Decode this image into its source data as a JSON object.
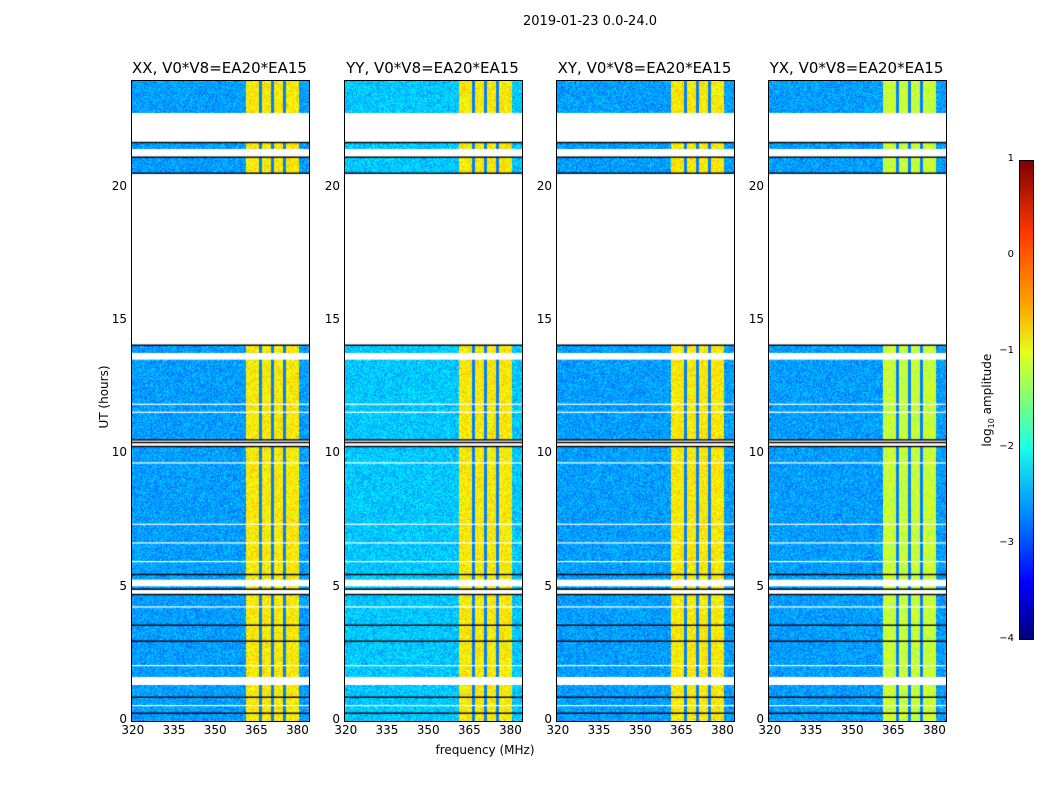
{
  "chart_data": {
    "type": "heatmap",
    "title": "2019-01-23 0.0-24.0",
    "xlabel": "frequency (MHz)",
    "ylabel": "UT (hours)",
    "xlim": [
      319.5,
      384
    ],
    "ylim": [
      0,
      24
    ],
    "xticks": [
      "320",
      "335",
      "350",
      "365",
      "380"
    ],
    "yticks": [
      "0",
      "5",
      "10",
      "15",
      "20"
    ],
    "panels": [
      {
        "title": "XX, V0*V8=EA20*EA15"
      },
      {
        "title": "YY, V0*V8=EA20*EA15"
      },
      {
        "title": "XY, V0*V8=EA20*EA15"
      },
      {
        "title": "YX, V0*V8=EA20*EA15"
      }
    ],
    "flagged_hours": [
      [
        21.7,
        22.8
      ],
      [
        21.15,
        21.45
      ],
      [
        14.1,
        20.55
      ],
      [
        13.55,
        13.8
      ],
      [
        10.3,
        10.55
      ],
      [
        4.75,
        4.95
      ],
      [
        5.05,
        5.3
      ],
      [
        1.35,
        1.65
      ]
    ],
    "bright_band_mhz": [
      361,
      380
    ],
    "colorbar": {
      "label_prefix": "log",
      "label_sub": "10",
      "label_suffix": " amplitude",
      "range": [
        -4,
        1
      ],
      "ticks": [
        "1",
        "0",
        "−1",
        "−2",
        "−3",
        "−4"
      ],
      "colormap": "jet"
    }
  }
}
